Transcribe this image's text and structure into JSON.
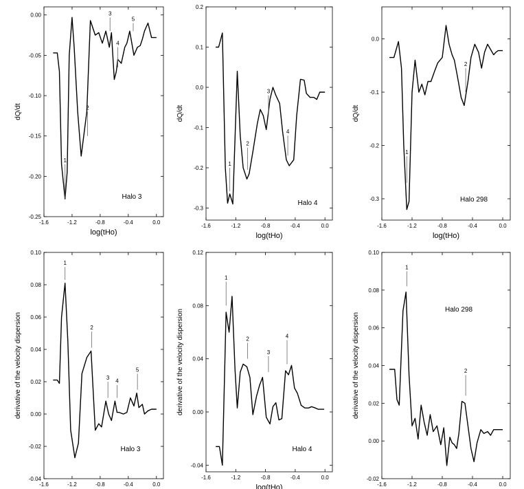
{
  "chart_data": [
    {
      "type": "line",
      "xlabel": "log(tHo)",
      "ylabel": "dQ/dt",
      "legend": "Halo 3",
      "xlim": [
        -1.6,
        0.1
      ],
      "ylim": [
        -0.25,
        0.01
      ],
      "xticks": [
        "-1.6",
        "-1.2",
        "-0.8",
        "-0.4",
        "0.0"
      ],
      "yticks": [
        "-0.25",
        "-0.20",
        "-0.15",
        "-0.10",
        "-0.05",
        "0.00"
      ],
      "series": [
        {
          "name": "Halo 3",
          "x": [
            -1.47,
            -1.41,
            -1.38,
            -1.35,
            -1.3,
            -1.27,
            -1.24,
            -1.2,
            -1.17,
            -1.12,
            -1.07,
            -0.99,
            -0.94,
            -0.87,
            -0.82,
            -0.77,
            -0.72,
            -0.67,
            -0.64,
            -0.6,
            -0.57,
            -0.55,
            -0.5,
            -0.45,
            -0.42,
            -0.38,
            -0.32,
            -0.27,
            -0.23,
            -0.2,
            -0.17,
            -0.12,
            -0.07,
            0.0
          ],
          "y": [
            -0.047,
            -0.047,
            -0.07,
            -0.185,
            -0.228,
            -0.195,
            -0.05,
            -0.003,
            -0.04,
            -0.12,
            -0.175,
            -0.12,
            -0.007,
            -0.025,
            -0.022,
            -0.035,
            -0.02,
            -0.04,
            -0.022,
            -0.08,
            -0.07,
            -0.055,
            -0.06,
            -0.04,
            -0.035,
            -0.02,
            -0.05,
            -0.04,
            -0.038,
            -0.03,
            -0.02,
            -0.01,
            -0.028,
            -0.028
          ]
        }
      ],
      "annotations": [
        {
          "label": "1",
          "x": -1.3,
          "tip": -0.227,
          "top": -0.185
        },
        {
          "label": "2",
          "x": -0.98,
          "tip": -0.15,
          "top": -0.12
        },
        {
          "label": "3",
          "x": -0.66,
          "tip": -0.02,
          "top": -0.003
        },
        {
          "label": "4",
          "x": -0.55,
          "tip": -0.065,
          "top": -0.04
        },
        {
          "label": "5",
          "x": -0.33,
          "tip": -0.02,
          "top": -0.01
        }
      ]
    },
    {
      "type": "line",
      "xlabel": "log(tHo)",
      "ylabel": "dQ/dt",
      "legend": "Halo 4",
      "xlim": [
        -1.6,
        0.1
      ],
      "ylim": [
        -0.33,
        0.2
      ],
      "xticks": [
        "-1.6",
        "-1.2",
        "-0.8",
        "-0.4",
        "0.0"
      ],
      "yticks": [
        "-0.3",
        "-0.2",
        "-0.1",
        "0.0",
        "0.1",
        "0.2"
      ],
      "series": [
        {
          "name": "Halo 4",
          "x": [
            -1.47,
            -1.43,
            -1.38,
            -1.34,
            -1.31,
            -1.28,
            -1.24,
            -1.18,
            -1.14,
            -1.1,
            -1.05,
            -1.02,
            -0.97,
            -0.91,
            -0.87,
            -0.83,
            -0.79,
            -0.74,
            -0.7,
            -0.66,
            -0.61,
            -0.57,
            -0.52,
            -0.48,
            -0.42,
            -0.38,
            -0.33,
            -0.28,
            -0.25,
            -0.2,
            -0.15,
            -0.11,
            -0.07,
            -0.03,
            0.0
          ],
          "y": [
            0.1,
            0.1,
            0.135,
            -0.2,
            -0.288,
            -0.265,
            -0.29,
            0.04,
            -0.12,
            -0.2,
            -0.228,
            -0.215,
            -0.16,
            -0.09,
            -0.055,
            -0.07,
            -0.105,
            -0.03,
            0.0,
            -0.02,
            -0.04,
            -0.11,
            -0.18,
            -0.195,
            -0.18,
            -0.07,
            0.02,
            0.018,
            -0.015,
            -0.025,
            -0.025,
            -0.03,
            -0.012,
            -0.012,
            -0.012
          ]
        }
      ],
      "annotations": [
        {
          "label": "1",
          "x": -1.28,
          "tip": -0.258,
          "top": -0.2
        },
        {
          "label": "2",
          "x": -1.04,
          "tip": -0.205,
          "top": -0.15
        },
        {
          "label": "3",
          "x": -0.76,
          "tip": -0.07,
          "top": -0.02
        },
        {
          "label": "4",
          "x": -0.5,
          "tip": -0.17,
          "top": -0.12
        }
      ]
    },
    {
      "type": "line",
      "xlabel": "log(tHo)",
      "ylabel": "dQ/dt",
      "legend": "Halo 298",
      "xlim": [
        -1.6,
        0.1
      ],
      "ylim": [
        -0.34,
        0.06
      ],
      "xticks": [
        "-1.6",
        "-1.2",
        "-0.8",
        "-0.4",
        "0.0"
      ],
      "yticks": [
        "-0.3",
        "-0.2",
        "-0.1",
        "0.0"
      ],
      "series": [
        {
          "name": "Halo 298",
          "x": [
            -1.5,
            -1.44,
            -1.41,
            -1.38,
            -1.34,
            -1.31,
            -1.27,
            -1.24,
            -1.2,
            -1.16,
            -1.11,
            -1.07,
            -1.03,
            -0.99,
            -0.95,
            -0.9,
            -0.86,
            -0.8,
            -0.75,
            -0.71,
            -0.67,
            -0.64,
            -0.6,
            -0.55,
            -0.51,
            -0.46,
            -0.42,
            -0.37,
            -0.32,
            -0.28,
            -0.24,
            -0.2,
            -0.16,
            -0.12,
            -0.09,
            -0.06,
            -0.03,
            0.0
          ],
          "y": [
            -0.035,
            -0.035,
            -0.02,
            -0.005,
            -0.055,
            -0.2,
            -0.32,
            -0.305,
            -0.1,
            -0.04,
            -0.1,
            -0.085,
            -0.105,
            -0.08,
            -0.08,
            -0.06,
            -0.045,
            -0.035,
            0.025,
            -0.01,
            -0.03,
            -0.04,
            -0.07,
            -0.11,
            -0.125,
            -0.08,
            -0.035,
            -0.01,
            -0.025,
            -0.055,
            -0.025,
            -0.01,
            -0.02,
            -0.03,
            -0.025,
            -0.022,
            -0.022,
            -0.022
          ]
        }
      ],
      "annotations": [
        {
          "label": "1",
          "x": -1.27,
          "tip": -0.27,
          "top": -0.22
        },
        {
          "label": "2",
          "x": -0.49,
          "tip": -0.1,
          "top": -0.055
        }
      ]
    },
    {
      "type": "line",
      "xlabel": "log(tHo)",
      "ylabel": "derivative of the velocity dispersion",
      "legend": "Halo 3",
      "xlim": [
        -1.6,
        0.1
      ],
      "ylim": [
        -0.04,
        0.1
      ],
      "xticks": [
        "-1.6",
        "-1.2",
        "-0.8",
        "-0.4",
        "0.0"
      ],
      "yticks": [
        "-0.04",
        "-0.02",
        "0.00",
        "0.02",
        "0.04",
        "0.06",
        "0.08",
        "0.10"
      ],
      "series": [
        {
          "name": "Halo 3",
          "x": [
            -1.47,
            -1.41,
            -1.38,
            -1.35,
            -1.3,
            -1.26,
            -1.22,
            -1.16,
            -1.11,
            -1.06,
            -0.99,
            -0.93,
            -0.87,
            -0.82,
            -0.78,
            -0.72,
            -0.68,
            -0.64,
            -0.59,
            -0.56,
            -0.53,
            -0.47,
            -0.42,
            -0.37,
            -0.32,
            -0.28,
            -0.25,
            -0.2,
            -0.17,
            -0.12,
            -0.07,
            -0.03,
            0.0
          ],
          "y": [
            0.021,
            0.021,
            0.019,
            0.06,
            0.081,
            0.045,
            -0.01,
            -0.027,
            -0.018,
            0.025,
            0.035,
            0.039,
            -0.01,
            -0.006,
            -0.008,
            0.008,
            0.0,
            -0.004,
            0.008,
            0.001,
            0.001,
            0.0,
            0.001,
            0.01,
            0.005,
            0.013,
            0.004,
            0.006,
            0.0,
            0.002,
            0.003,
            0.003,
            0.003
          ]
        }
      ],
      "annotations": [
        {
          "label": "1",
          "x": -1.3,
          "tip": 0.083,
          "top": 0.091
        },
        {
          "label": "2",
          "x": -0.92,
          "tip": 0.041,
          "top": 0.051
        },
        {
          "label": "3",
          "x": -0.69,
          "tip": 0.01,
          "top": 0.02
        },
        {
          "label": "4",
          "x": -0.56,
          "tip": 0.01,
          "top": 0.018
        },
        {
          "label": "5",
          "x": -0.27,
          "tip": 0.015,
          "top": 0.025
        }
      ]
    },
    {
      "type": "line",
      "xlabel": "log(tHo)",
      "ylabel": "derivative of the velocity dispersion",
      "legend": "Halo 4",
      "xlim": [
        -1.6,
        0.1
      ],
      "ylim": [
        -0.045,
        0.12
      ],
      "xticks": [
        "-1.6",
        "-1.2",
        "-0.8",
        "-0.4",
        "0.0"
      ],
      "yticks": [
        "-0.04",
        "0.00",
        "0.04",
        "0.08",
        "0.12"
      ],
      "series": [
        {
          "name": "Halo 4",
          "x": [
            -1.47,
            -1.42,
            -1.38,
            -1.33,
            -1.29,
            -1.25,
            -1.21,
            -1.18,
            -1.14,
            -1.1,
            -1.05,
            -1.01,
            -0.97,
            -0.92,
            -0.88,
            -0.84,
            -0.79,
            -0.74,
            -0.7,
            -0.66,
            -0.62,
            -0.58,
            -0.53,
            -0.49,
            -0.45,
            -0.41,
            -0.37,
            -0.32,
            -0.27,
            -0.22,
            -0.18,
            -0.13,
            -0.09,
            -0.05,
            -0.01
          ],
          "y": [
            -0.026,
            -0.026,
            -0.04,
            0.075,
            0.06,
            0.087,
            0.032,
            0.003,
            0.03,
            0.036,
            0.034,
            0.026,
            -0.002,
            0.012,
            0.02,
            0.026,
            -0.004,
            -0.009,
            0.004,
            0.007,
            -0.006,
            -0.005,
            0.031,
            0.028,
            0.035,
            0.018,
            0.014,
            0.005,
            0.003,
            0.003,
            0.004,
            0.003,
            0.002,
            0.002,
            0.002
          ]
        }
      ],
      "annotations": [
        {
          "label": "1",
          "x": -1.33,
          "tip": 0.08,
          "top": 0.098
        },
        {
          "label": "2",
          "x": -1.04,
          "tip": 0.04,
          "top": 0.052
        },
        {
          "label": "3",
          "x": -0.76,
          "tip": 0.03,
          "top": 0.042
        },
        {
          "label": "4",
          "x": -0.51,
          "tip": 0.036,
          "top": 0.054
        }
      ]
    },
    {
      "type": "line",
      "xlabel": "log(tHo)",
      "ylabel": "derivative of the velocity dispersion",
      "legend": "Halo 298",
      "xlim": [
        -1.6,
        0.1
      ],
      "ylim": [
        -0.02,
        0.1
      ],
      "xticks": [
        "-1.6",
        "-1.2",
        "-0.8",
        "-0.4",
        "0.0"
      ],
      "yticks": [
        "-0.02",
        "0.00",
        "0.02",
        "0.04",
        "0.06",
        "0.08",
        "0.10"
      ],
      "series": [
        {
          "name": "Halo 298",
          "x": [
            -1.5,
            -1.43,
            -1.4,
            -1.37,
            -1.32,
            -1.28,
            -1.24,
            -1.2,
            -1.16,
            -1.12,
            -1.08,
            -1.04,
            -1.0,
            -0.96,
            -0.92,
            -0.87,
            -0.82,
            -0.78,
            -0.74,
            -0.7,
            -0.67,
            -0.64,
            -0.61,
            -0.58,
            -0.54,
            -0.5,
            -0.46,
            -0.42,
            -0.38,
            -0.34,
            -0.29,
            -0.25,
            -0.2,
            -0.16,
            -0.12,
            -0.08,
            -0.05,
            -0.02,
            0.0
          ],
          "y": [
            0.038,
            0.038,
            0.022,
            0.019,
            0.069,
            0.079,
            0.035,
            0.008,
            0.012,
            0.001,
            0.019,
            0.01,
            0.003,
            0.014,
            0.005,
            0.008,
            -0.002,
            0.007,
            -0.013,
            0.002,
            -0.001,
            -0.002,
            -0.004,
            0.004,
            0.021,
            0.02,
            0.008,
            -0.004,
            -0.011,
            -0.001,
            0.006,
            0.004,
            0.005,
            0.003,
            0.006,
            0.006,
            0.006,
            0.006,
            0.006
          ]
        }
      ],
      "annotations": [
        {
          "label": "1",
          "x": -1.27,
          "tip": 0.082,
          "top": 0.09
        },
        {
          "label": "2",
          "x": -0.49,
          "tip": 0.024,
          "top": 0.035
        }
      ]
    }
  ]
}
